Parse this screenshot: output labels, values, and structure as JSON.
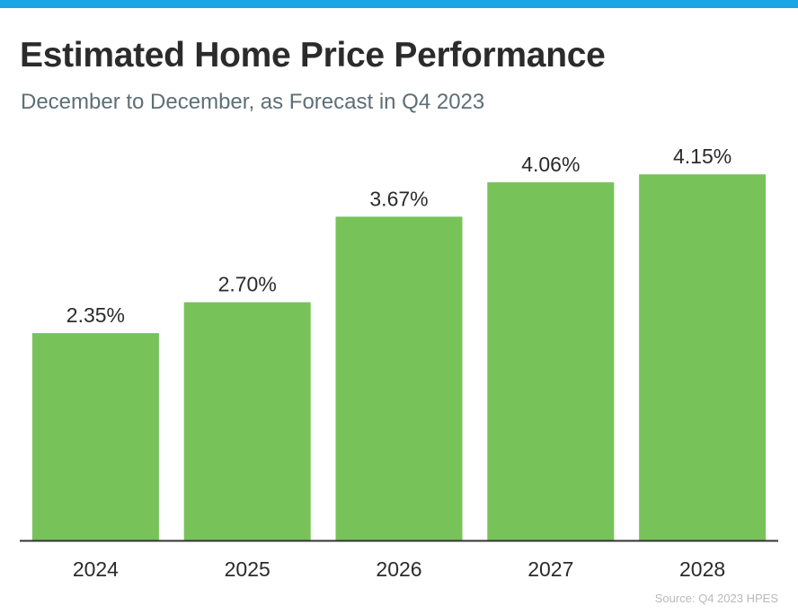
{
  "header": {
    "title": "Estimated Home Price Performance",
    "subtitle": "December to December, as Forecast in Q4 2023"
  },
  "footer": {
    "source": "Source: Q4 2023 HPES"
  },
  "colors": {
    "accent_bar": "#1aa5e6",
    "bar_fill": "#77c35a",
    "axis": "#333333",
    "text": "#2b2b2b"
  },
  "chart_data": {
    "type": "bar",
    "title": "Estimated Home Price Performance",
    "subtitle": "December to December, as Forecast in Q4 2023",
    "categories": [
      "2024",
      "2025",
      "2026",
      "2027",
      "2028"
    ],
    "values": [
      2.35,
      2.7,
      3.67,
      4.06,
      4.15
    ],
    "data_labels": [
      "2.35%",
      "2.70%",
      "3.67%",
      "4.06%",
      "4.15%"
    ],
    "xlabel": "",
    "ylabel": "",
    "ylim": [
      0,
      4.6
    ],
    "grid": false,
    "legend": "none"
  }
}
